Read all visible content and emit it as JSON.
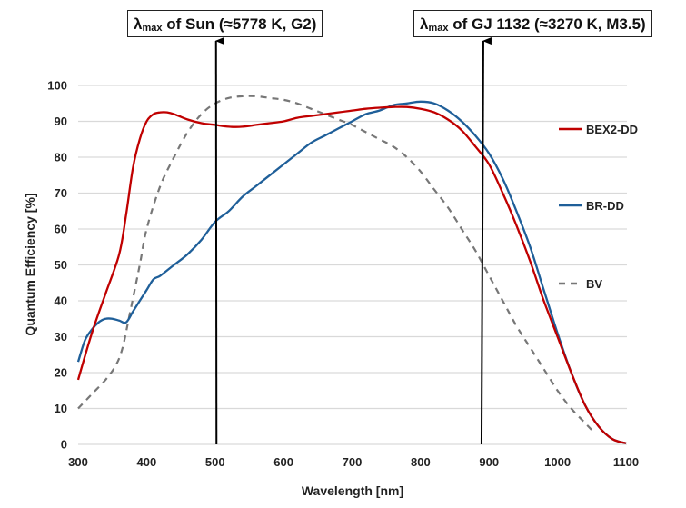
{
  "chart_data": {
    "type": "line",
    "title": "",
    "xlabel": "Wavelength [nm]",
    "ylabel": "Quantum Efficiency [%]",
    "xlim": [
      300,
      1100
    ],
    "ylim": [
      0,
      100
    ],
    "xticks": [
      300,
      400,
      500,
      600,
      700,
      800,
      900,
      1000,
      1100
    ],
    "yticks": [
      0,
      10,
      20,
      30,
      40,
      50,
      60,
      70,
      80,
      90,
      100
    ],
    "grid": "horizontal",
    "legend_position": "right",
    "series": [
      {
        "name": "BEX2-DD",
        "color": "#c00000",
        "style": "solid",
        "x": [
          300,
          320,
          340,
          360,
          370,
          380,
          390,
          400,
          410,
          420,
          430,
          440,
          460,
          480,
          500,
          520,
          540,
          560,
          580,
          600,
          620,
          640,
          660,
          680,
          700,
          720,
          740,
          760,
          780,
          800,
          820,
          840,
          860,
          880,
          900,
          920,
          940,
          960,
          980,
          1000,
          1020,
          1040,
          1060,
          1080,
          1100
        ],
        "y": [
          18,
          31,
          42,
          53,
          64,
          77,
          85,
          90,
          92,
          92.5,
          92.5,
          92,
          90.5,
          89.5,
          89,
          88.5,
          88.5,
          89,
          89.5,
          90,
          91,
          91.5,
          92,
          92.5,
          93,
          93.5,
          93.8,
          94,
          94,
          93.5,
          92.5,
          90.5,
          87.5,
          83,
          78,
          70,
          61,
          51,
          40,
          30,
          20,
          11,
          5,
          1.5,
          0.3
        ]
      },
      {
        "name": "BR-DD",
        "color": "#1f5f99",
        "style": "solid",
        "x": [
          300,
          310,
          320,
          330,
          340,
          350,
          360,
          370,
          380,
          390,
          400,
          410,
          420,
          440,
          460,
          480,
          500,
          520,
          540,
          560,
          580,
          600,
          620,
          640,
          660,
          680,
          700,
          720,
          740,
          760,
          780,
          800,
          820,
          840,
          860,
          880,
          900,
          920,
          940,
          960,
          980,
          1000,
          1020,
          1040,
          1060,
          1080,
          1100
        ],
        "y": [
          23,
          29,
          32,
          34,
          35,
          35,
          34.5,
          34,
          37,
          40,
          43,
          46,
          47,
          50,
          53,
          57,
          62,
          65,
          69,
          72,
          75,
          78,
          81,
          84,
          86,
          88,
          90,
          92,
          93,
          94.5,
          95,
          95.5,
          95,
          93,
          90,
          86,
          81,
          74,
          65,
          55,
          43,
          31,
          20,
          11,
          5,
          1.5,
          0.3
        ]
      },
      {
        "name": "BV",
        "color": "#777777",
        "style": "dashed",
        "x": [
          300,
          320,
          340,
          355,
          365,
          375,
          390,
          400,
          420,
          440,
          460,
          480,
          500,
          520,
          540,
          560,
          580,
          600,
          620,
          640,
          660,
          680,
          700,
          720,
          740,
          760,
          780,
          800,
          820,
          840,
          860,
          880,
          900,
          920,
          940,
          960,
          980,
          1000,
          1020,
          1040,
          1050
        ],
        "y": [
          10,
          14,
          18,
          22,
          27,
          36,
          50,
          60,
          72,
          80,
          87,
          92,
          95,
          96.5,
          97,
          97,
          96.5,
          96,
          95,
          93.5,
          92,
          90.5,
          89,
          87,
          85,
          83,
          80,
          76,
          71,
          66,
          60,
          54,
          47,
          40,
          33,
          27,
          21,
          15,
          10,
          6,
          4
        ]
      }
    ],
    "annotations": [
      {
        "id": "sun",
        "prefix": "λ",
        "subscript": "max",
        "text": " of Sun (≈5778 K, G2)",
        "x": 502
      },
      {
        "id": "gj1132",
        "prefix": "λ",
        "subscript": "max",
        "text": " of GJ 1132 (≈3270 K, M3.5)",
        "x": 889
      }
    ]
  }
}
